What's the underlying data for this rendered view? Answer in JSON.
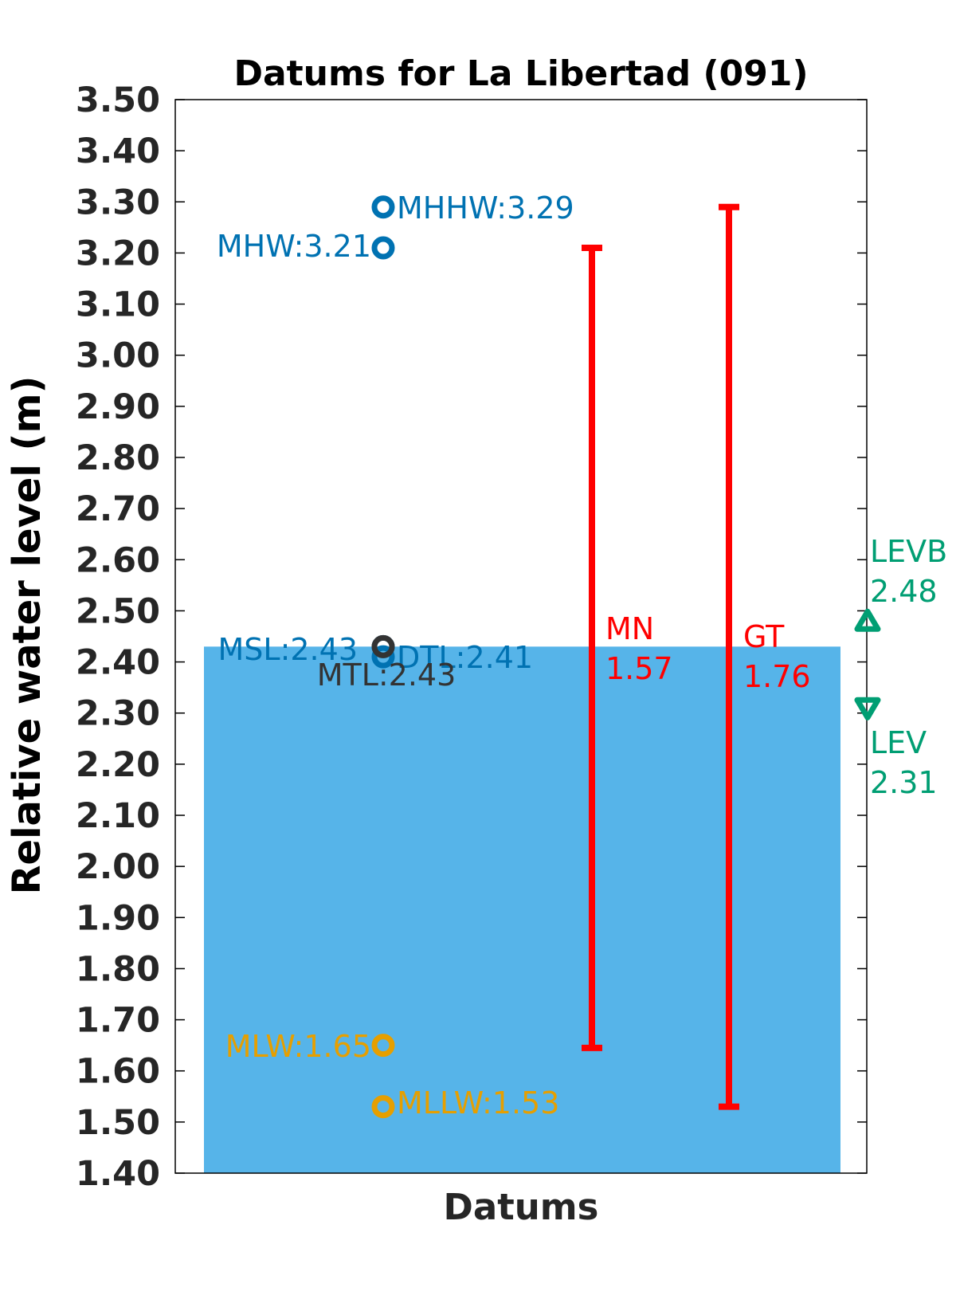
{
  "chart_data": {
    "type": "datum-plot",
    "title": "Datums for La Libertad (091)",
    "xlabel": "Datums",
    "ylabel": "Relative water level (m)",
    "ylim": [
      1.4,
      3.5
    ],
    "yticks": [
      "1.40",
      "1.50",
      "1.60",
      "1.70",
      "1.80",
      "1.90",
      "2.00",
      "2.10",
      "2.20",
      "2.30",
      "2.40",
      "2.50",
      "2.60",
      "2.70",
      "2.80",
      "2.90",
      "3.00",
      "3.10",
      "3.20",
      "3.30",
      "3.40",
      "3.50"
    ],
    "mean_level_fill": {
      "value": 2.43,
      "color": "#56b4e9"
    },
    "datums": [
      {
        "name": "MHHW",
        "label": "MHHW:3.29",
        "value": 3.29,
        "color": "#0072b2",
        "marker": "open-circle"
      },
      {
        "name": "MHW",
        "label": "MHW:3.21",
        "value": 3.21,
        "color": "#0072b2",
        "marker": "open-circle"
      },
      {
        "name": "MSL",
        "label": "MSL:2.43",
        "value": 2.43,
        "color": "#0072b2",
        "marker": "open-circle"
      },
      {
        "name": "DTL",
        "label": "DTL:2.41",
        "value": 2.41,
        "color": "#0072b2",
        "marker": "open-circle"
      },
      {
        "name": "MTL",
        "label": "MTL:2.43",
        "value": 2.43,
        "color": "#333333",
        "marker": "open-circle"
      },
      {
        "name": "MLW",
        "label": "MLW:1.65",
        "value": 1.65,
        "color": "#e69f00",
        "marker": "open-circle"
      },
      {
        "name": "MLLW",
        "label": "MLLW:1.53",
        "value": 1.53,
        "color": "#e69f00",
        "marker": "open-circle"
      }
    ],
    "ranges": [
      {
        "name": "MN",
        "value_label": "1.57",
        "low": 1.645,
        "high": 3.21,
        "color": "#ff0000"
      },
      {
        "name": "GT",
        "value_label": "1.76",
        "low": 1.53,
        "high": 3.29,
        "color": "#ff0000"
      }
    ],
    "extremes": [
      {
        "name": "LEVB",
        "value_label": "2.48",
        "value": 2.48,
        "color": "#009e73",
        "marker": "triangle-up"
      },
      {
        "name": "LEV",
        "value_label": "2.31",
        "value": 2.31,
        "color": "#009e73",
        "marker": "triangle-down"
      }
    ]
  }
}
